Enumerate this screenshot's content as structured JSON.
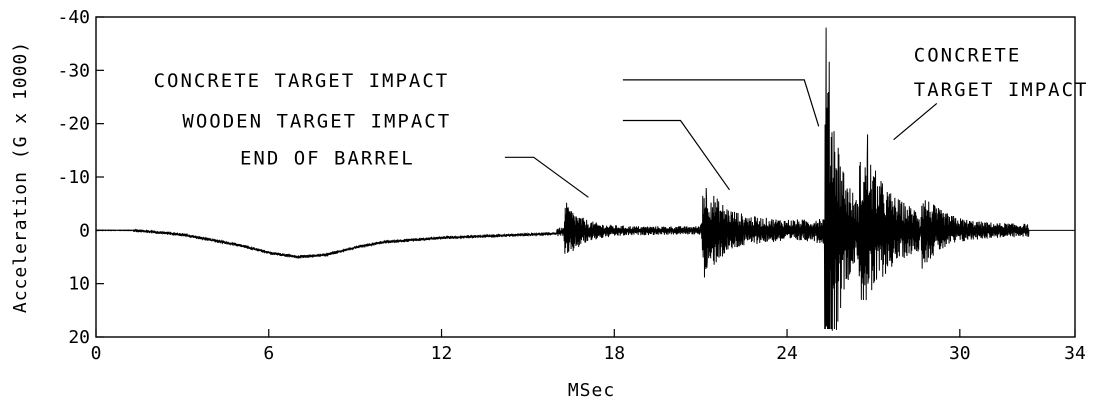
{
  "chart_data": {
    "type": "line",
    "title": "",
    "xlabel": "MSec",
    "ylabel": "Acceleration (G x 1000)",
    "xlim": [
      0,
      34
    ],
    "ylim": [
      -40,
      20
    ],
    "y_inverted": true,
    "grid": false,
    "x_ticks": [
      0,
      6,
      12,
      18,
      24,
      30,
      34
    ],
    "x_tick_labels": [
      "0",
      "6",
      "12",
      "18",
      "24",
      "30",
      "34"
    ],
    "y_ticks": [
      -40,
      -30,
      -20,
      -10,
      0,
      10,
      20
    ],
    "y_tick_labels": [
      "-40",
      "-30",
      "-20",
      "-10",
      "0",
      "10",
      "20"
    ],
    "line_color": "#000000",
    "series": [
      {
        "values_description_free": true,
        "segments": [
          {
            "from": 0.0,
            "to": 1.3,
            "baseline": [
              [
                0.0,
                0
              ],
              [
                1.3,
                0
              ]
            ],
            "noise_amp": 0.05
          },
          {
            "from": 1.3,
            "to": 16.0,
            "baseline": [
              [
                1.3,
                0.0
              ],
              [
                2.0,
                0.3
              ],
              [
                3.0,
                0.8
              ],
              [
                5.0,
                2.8
              ],
              [
                6.0,
                4.2
              ],
              [
                7.0,
                5.0
              ],
              [
                8.0,
                4.6
              ],
              [
                9.0,
                3.2
              ],
              [
                10.0,
                2.2
              ],
              [
                11.0,
                1.8
              ],
              [
                12.0,
                1.4
              ],
              [
                14.0,
                1.0
              ],
              [
                16.0,
                0.6
              ]
            ],
            "noise_amp": 0.3
          },
          {
            "from": 16.0,
            "to": 21.0,
            "baseline": [
              [
                16.0,
                0.3
              ],
              [
                18.0,
                0.1
              ],
              [
                21.0,
                0.0
              ]
            ],
            "noise_amp": 0.8,
            "burst": {
              "at": 16.3,
              "amp": 5.0,
              "decay": 0.6
            }
          },
          {
            "from": 21.0,
            "to": 25.0,
            "baseline": [
              [
                21.0,
                0.0
              ],
              [
                25.0,
                0.0
              ]
            ],
            "noise_amp": 2.0,
            "burst": {
              "at": 21.1,
              "amp": 8.0,
              "decay": 0.7
            }
          },
          {
            "from": 25.0,
            "to": 28.6,
            "baseline": [
              [
                25.0,
                0.0
              ],
              [
                28.6,
                0.0
              ]
            ],
            "noise_amp": 2.5,
            "burst": {
              "at": 25.35,
              "amp": 38.0,
              "decay": 0.45
            },
            "burst2": {
              "at": 26.8,
              "amp": 18.0,
              "decay": 0.9
            }
          },
          {
            "from": 28.6,
            "to": 32.4,
            "baseline": [
              [
                28.6,
                0.0
              ],
              [
                32.4,
                0.0
              ]
            ],
            "noise_amp": 1.2,
            "burst": {
              "at": 28.7,
              "amp": 6.0,
              "decay": 0.8
            }
          },
          {
            "from": 32.4,
            "to": 34.0,
            "baseline": [
              [
                32.4,
                0.0
              ],
              [
                34.0,
                0.0
              ]
            ],
            "noise_amp": 0.0
          }
        ],
        "peaks": {
          "end_of_barrel": {
            "x": 16.4,
            "min": -4,
            "max": 4
          },
          "wooden_target": {
            "x": 21.2,
            "min": -6,
            "max": 7
          },
          "concrete_first": {
            "x": 25.35,
            "min": -38,
            "max": 18
          },
          "concrete_second": {
            "x": 26.8,
            "min": -18,
            "max": 10
          }
        }
      }
    ],
    "annotations": [
      {
        "text": "CONCRETE TARGET IMPACT",
        "label_x": 2.0,
        "label_y": -28.2,
        "line": [
          [
            18.3,
            -28.2
          ],
          [
            24.6,
            -28.2
          ],
          [
            25.1,
            -19.5
          ]
        ]
      },
      {
        "text": "WOODEN TARGET IMPACT",
        "label_x": 3.0,
        "label_y": -20.6,
        "line": [
          [
            18.3,
            -20.6
          ],
          [
            20.3,
            -20.6
          ],
          [
            22.0,
            -7.6
          ]
        ]
      },
      {
        "text": "END OF BARREL",
        "label_x": 5.0,
        "label_y": -13.7,
        "line": [
          [
            14.2,
            -13.7
          ],
          [
            15.2,
            -13.7
          ],
          [
            17.1,
            -6.2
          ]
        ]
      },
      {
        "text": "CONCRETE",
        "label_x": 28.4,
        "label_y": -33.0,
        "line": null
      },
      {
        "text": "TARGET IMPACT",
        "label_x": 28.4,
        "label_y": -26.5,
        "line": [
          [
            29.2,
            -23.8
          ],
          [
            27.7,
            -17.0
          ]
        ]
      }
    ]
  }
}
